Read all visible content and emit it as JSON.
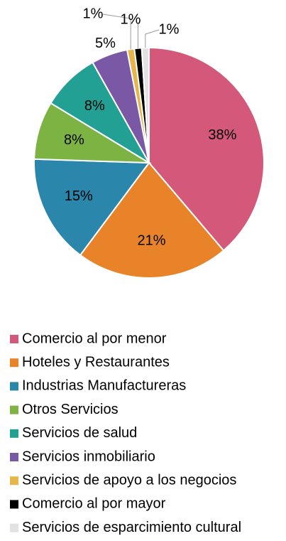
{
  "chart_data": {
    "type": "pie",
    "categories": [
      "Comercio al por menor",
      "Hoteles y Restaurantes",
      "Industrias Manufactureras",
      "Otros Servicios",
      "Servicios de salud",
      "Servicios inmobiliario",
      "Servicios de apoyo a los negocios",
      "Comercio al por mayor",
      "Servicios de esparcimiento cultural"
    ],
    "values": [
      38,
      21,
      15,
      8,
      8,
      5,
      1,
      1,
      1
    ],
    "value_labels": [
      "38%",
      "21%",
      "15%",
      "8%",
      "8%",
      "5%",
      "1%",
      "1%",
      "1%"
    ],
    "colors": [
      "#d4587a",
      "#e8832a",
      "#2b86ac",
      "#7cb342",
      "#22a094",
      "#7b58a6",
      "#e6b64c",
      "#000000",
      "#e2e2e2"
    ]
  }
}
